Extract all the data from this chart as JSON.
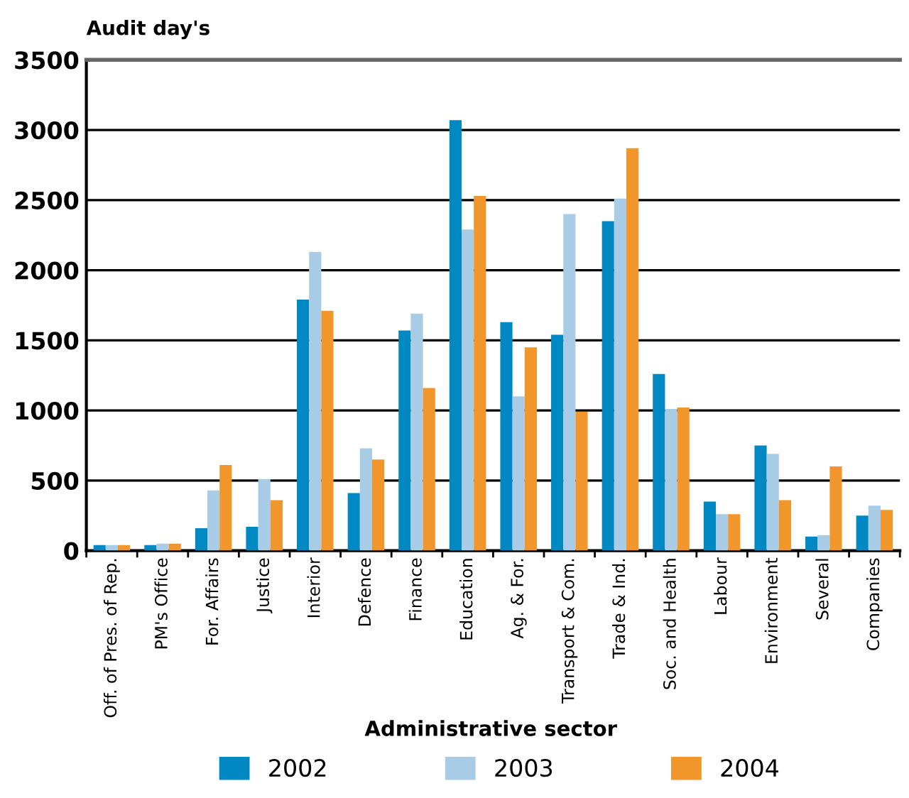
{
  "chart_data": {
    "type": "bar",
    "ylabel": "Audit day's",
    "xlabel": "Administrative sector",
    "categories": [
      "Off. of Pres. of Rep.",
      "PM's Office",
      "For. Affairs",
      "Justice",
      "Interior",
      "Defence",
      "Finance",
      "Education",
      "Ag. & For.",
      "Transport & Com.",
      "Trade & Ind.",
      "Soc. and Health",
      "Labour",
      "Environment",
      "Several",
      "Companies"
    ],
    "series": [
      {
        "name": "2002",
        "color": "#0088c2",
        "values": [
          40,
          40,
          160,
          170,
          1790,
          410,
          1570,
          3070,
          1630,
          1540,
          2350,
          1260,
          350,
          750,
          100,
          250
        ]
      },
      {
        "name": "2003",
        "color": "#a8cce6",
        "values": [
          40,
          50,
          430,
          510,
          2130,
          730,
          1690,
          2290,
          1100,
          2400,
          2510,
          1010,
          260,
          690,
          110,
          320
        ]
      },
      {
        "name": "2004",
        "color": "#f0962b",
        "values": [
          40,
          50,
          610,
          360,
          1710,
          650,
          1160,
          2530,
          1450,
          990,
          2870,
          1020,
          260,
          360,
          600,
          290
        ]
      }
    ],
    "ylim": [
      0,
      3500
    ],
    "yticks": [
      0,
      500,
      1000,
      1500,
      2000,
      2500,
      3000,
      3500
    ],
    "grid": "y",
    "legend": "bottom"
  }
}
